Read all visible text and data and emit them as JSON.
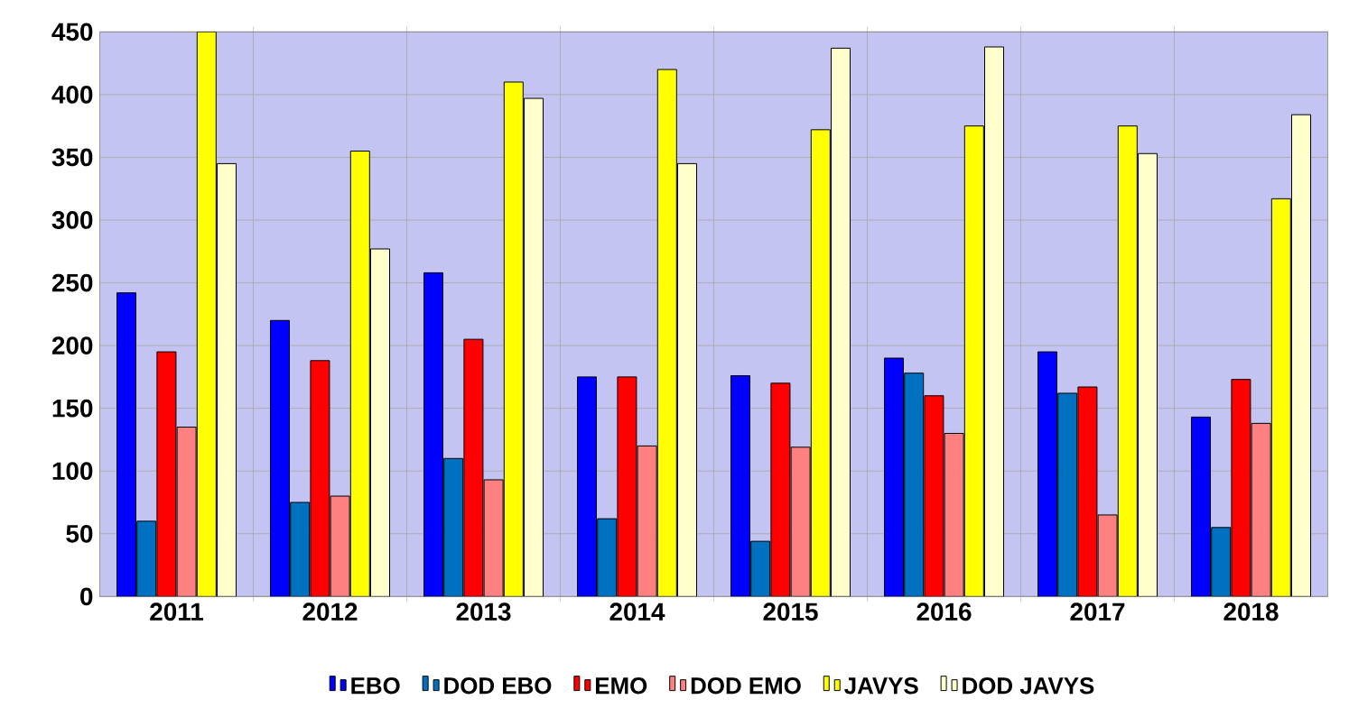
{
  "chart_data": {
    "type": "bar",
    "categories": [
      "2011",
      "2012",
      "2013",
      "2014",
      "2015",
      "2016",
      "2017",
      "2018"
    ],
    "series": [
      {
        "name": "EBO",
        "color": "#0000ff",
        "values": [
          242,
          220,
          258,
          175,
          176,
          190,
          195,
          143
        ]
      },
      {
        "name": "DOD EBO",
        "color": "#0070c0",
        "values": [
          60,
          75,
          110,
          62,
          44,
          178,
          162,
          55
        ]
      },
      {
        "name": "EMO",
        "color": "#ff0000",
        "values": [
          195,
          188,
          205,
          175,
          170,
          160,
          167,
          173
        ]
      },
      {
        "name": "DOD EMO",
        "color": "#ff8080",
        "values": [
          135,
          80,
          93,
          120,
          119,
          130,
          65,
          138
        ]
      },
      {
        "name": "JAVYS",
        "color": "#ffff00",
        "values": [
          450,
          355,
          410,
          420,
          372,
          375,
          375,
          317
        ]
      },
      {
        "name": "DOD JAVYS",
        "color": "#ffffcc",
        "values": [
          345,
          277,
          397,
          345,
          437,
          438,
          353,
          384
        ]
      }
    ],
    "ylim": [
      0,
      450
    ],
    "yticks": [
      0,
      50,
      100,
      150,
      200,
      250,
      300,
      350,
      400,
      450
    ],
    "grid": true,
    "legend": "bottom"
  }
}
